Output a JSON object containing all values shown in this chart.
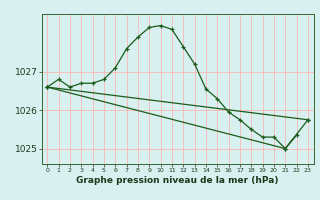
{
  "xlabel": "Graphe pression niveau de la mer (hPa)",
  "bg_color": "#d8f0f0",
  "grid_color": "#ffaaaa",
  "line_color": "#1a5c1a",
  "marker": "+",
  "x": [
    0,
    1,
    2,
    3,
    4,
    5,
    6,
    7,
    8,
    9,
    10,
    11,
    12,
    13,
    14,
    15,
    16,
    17,
    18,
    19,
    20,
    21,
    22,
    23
  ],
  "line1": [
    1026.6,
    1026.8,
    1026.6,
    1026.7,
    1026.7,
    1026.8,
    1027.1,
    1027.6,
    1027.9,
    1028.15,
    1028.2,
    1028.1,
    1027.65,
    1027.2,
    1026.55,
    1026.3,
    1025.95,
    1025.75,
    1025.5,
    1025.3,
    1025.3,
    1025.0,
    1025.35,
    null
  ],
  "line2_x": [
    0,
    23
  ],
  "line2_y": [
    1026.6,
    1025.75
  ],
  "line3_x": [
    0,
    21,
    23
  ],
  "line3_y": [
    1026.6,
    1025.0,
    1025.75
  ],
  "ylim": [
    1024.6,
    1028.5
  ],
  "yticks": [
    1025,
    1026,
    1027
  ],
  "xticks": [
    0,
    1,
    2,
    3,
    4,
    5,
    6,
    7,
    8,
    9,
    10,
    11,
    12,
    13,
    14,
    15,
    16,
    17,
    18,
    19,
    20,
    21,
    22,
    23
  ]
}
